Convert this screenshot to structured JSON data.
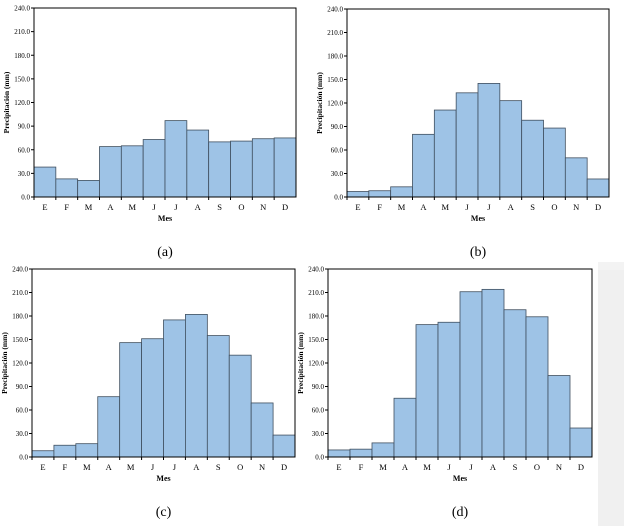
{
  "colors": {
    "bar_fill": "#9ec3e6",
    "bar_stroke": "#3f4f5f",
    "axis": "#000000",
    "page": "#ffffff"
  },
  "chart_data": [
    {
      "type": "bar",
      "caption": "(a)",
      "xlabel": "Mes",
      "ylabel": "Precipitación (mm)",
      "categories": [
        "E",
        "F",
        "M",
        "A",
        "M",
        "J",
        "J",
        "A",
        "S",
        "O",
        "N",
        "D"
      ],
      "values": [
        38,
        23,
        21,
        64,
        65,
        73,
        97,
        85,
        70,
        71,
        74,
        75
      ],
      "yticks": [
        "0.0",
        "30.0",
        "60.0",
        "90.0",
        "120.0",
        "150.0",
        "180.0",
        "210.0",
        "240.0"
      ],
      "ylim": [
        0,
        240
      ],
      "grid": false
    },
    {
      "type": "bar",
      "caption": "(b)",
      "xlabel": "Mes",
      "ylabel": "Precipitación (mm)",
      "categories": [
        "E",
        "F",
        "M",
        "A",
        "M",
        "J",
        "J",
        "A",
        "S",
        "O",
        "N",
        "D"
      ],
      "values": [
        7,
        8,
        13,
        80,
        111,
        133,
        145,
        123,
        98,
        88,
        50,
        23
      ],
      "yticks": [
        "0.0",
        "30.0",
        "60.0",
        "90.0",
        "120.0",
        "150.0",
        "180.0",
        "210.0",
        "240.0"
      ],
      "ylim": [
        0,
        240
      ],
      "grid": false
    },
    {
      "type": "bar",
      "caption": "(c)",
      "xlabel": "Mes",
      "ylabel": "Precipitación (mm)",
      "categories": [
        "E",
        "F",
        "M",
        "A",
        "M",
        "J",
        "J",
        "A",
        "S",
        "O",
        "N",
        "D"
      ],
      "values": [
        8,
        15,
        17,
        77,
        146,
        151,
        175,
        182,
        155,
        130,
        69,
        28
      ],
      "yticks": [
        "0.0",
        "30.0",
        "60.0",
        "90.0",
        "120.0",
        "150.0",
        "180.0",
        "210.0",
        "240.0"
      ],
      "ylim": [
        0,
        240
      ],
      "grid": false
    },
    {
      "type": "bar",
      "caption": "(d)",
      "xlabel": "Mes",
      "ylabel": "Precipitación (mm)",
      "categories": [
        "E",
        "F",
        "M",
        "A",
        "M",
        "J",
        "J",
        "A",
        "S",
        "O",
        "N",
        "D"
      ],
      "values": [
        9,
        10,
        18,
        75,
        169,
        172,
        211,
        214,
        188,
        179,
        104,
        37
      ],
      "yticks": [
        "0.0",
        "30.0",
        "60.0",
        "90.0",
        "120.0",
        "150.0",
        "180.0",
        "210.0",
        "240.0"
      ],
      "ylim": [
        0,
        240
      ],
      "grid": false
    }
  ]
}
